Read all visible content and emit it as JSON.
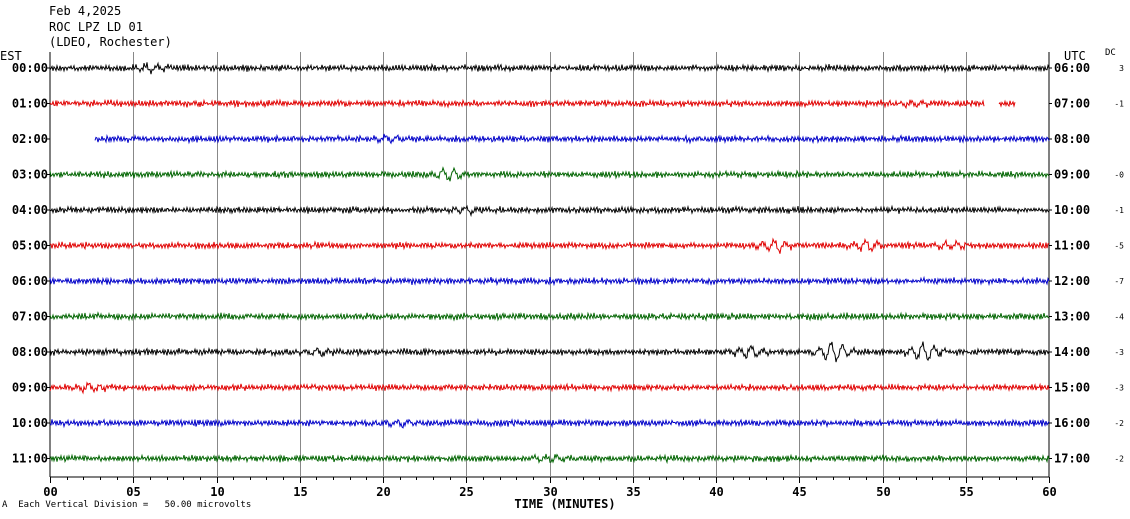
{
  "header": {
    "date": "Feb 4,2025",
    "station": "ROC LPZ LD 01",
    "network": "(LDEO, Rochester)"
  },
  "left_tz": "EST",
  "right_tz": "UTC",
  "dc_header": "DC",
  "footer_note": "Each Vertical Division =   50.00 microvolts",
  "footer_mark": "A",
  "chart_data": {
    "type": "line",
    "title": "",
    "xlabel": "TIME (MINUTES)",
    "xlim": [
      0,
      60
    ],
    "x_ticks": [
      "00",
      "05",
      "10",
      "15",
      "20",
      "25",
      "30",
      "35",
      "40",
      "45",
      "50",
      "55",
      "60"
    ],
    "grid": "vertical lines every 5 minutes",
    "trace_colors": [
      "#000000",
      "#e00000",
      "#0000c8",
      "#006400"
    ],
    "rows": [
      {
        "est": "00:00",
        "utc": "06:00",
        "dc": "3",
        "color": "#000000",
        "start_min": 0,
        "end_min": 60,
        "events": [
          [
            6,
            2.2
          ]
        ]
      },
      {
        "est": "01:00",
        "utc": "07:00",
        "dc": "-1",
        "color": "#e00000",
        "start_min": 0,
        "end_min": 58,
        "gap": [
          56.1,
          57.0
        ],
        "events": [
          [
            52,
            1.6
          ]
        ]
      },
      {
        "est": "02:00",
        "utc": "08:00",
        "dc": "",
        "color": "#0000c8",
        "start_min": 2.7,
        "end_min": 60,
        "events": [
          [
            20.5,
            1.8
          ]
        ]
      },
      {
        "est": "03:00",
        "utc": "09:00",
        "dc": "-0",
        "color": "#006400",
        "start_min": 0,
        "end_min": 60,
        "events": [
          [
            24,
            3.2
          ]
        ]
      },
      {
        "est": "04:00",
        "utc": "10:00",
        "dc": "-1",
        "color": "#000000",
        "start_min": 0,
        "end_min": 60,
        "events": [
          [
            25,
            1.8
          ]
        ]
      },
      {
        "est": "05:00",
        "utc": "11:00",
        "dc": "-5",
        "color": "#e00000",
        "start_min": 0,
        "end_min": 60,
        "events": [
          [
            43.5,
            3.5
          ],
          [
            49,
            2.8
          ],
          [
            54,
            2.0
          ]
        ]
      },
      {
        "est": "06:00",
        "utc": "12:00",
        "dc": "-7",
        "color": "#0000c8",
        "start_min": 0,
        "end_min": 60,
        "events": []
      },
      {
        "est": "07:00",
        "utc": "13:00",
        "dc": "-4",
        "color": "#006400",
        "start_min": 0,
        "end_min": 60,
        "events": []
      },
      {
        "est": "08:00",
        "utc": "14:00",
        "dc": "-3",
        "color": "#000000",
        "start_min": 0,
        "end_min": 60,
        "events": [
          [
            16,
            2.0
          ],
          [
            42,
            3.0
          ],
          [
            47,
            5.5
          ],
          [
            52.5,
            5.0
          ]
        ]
      },
      {
        "est": "09:00",
        "utc": "15:00",
        "dc": "-3",
        "color": "#e00000",
        "start_min": 0,
        "end_min": 60,
        "events": [
          [
            2.3,
            2.0
          ]
        ]
      },
      {
        "est": "10:00",
        "utc": "16:00",
        "dc": "-2",
        "color": "#0000c8",
        "start_min": 0,
        "end_min": 60,
        "events": [
          [
            21,
            1.8
          ]
        ]
      },
      {
        "est": "11:00",
        "utc": "17:00",
        "dc": "-2",
        "color": "#006400",
        "start_min": 0,
        "end_min": 60,
        "events": [
          [
            30,
            1.5
          ]
        ]
      }
    ]
  }
}
